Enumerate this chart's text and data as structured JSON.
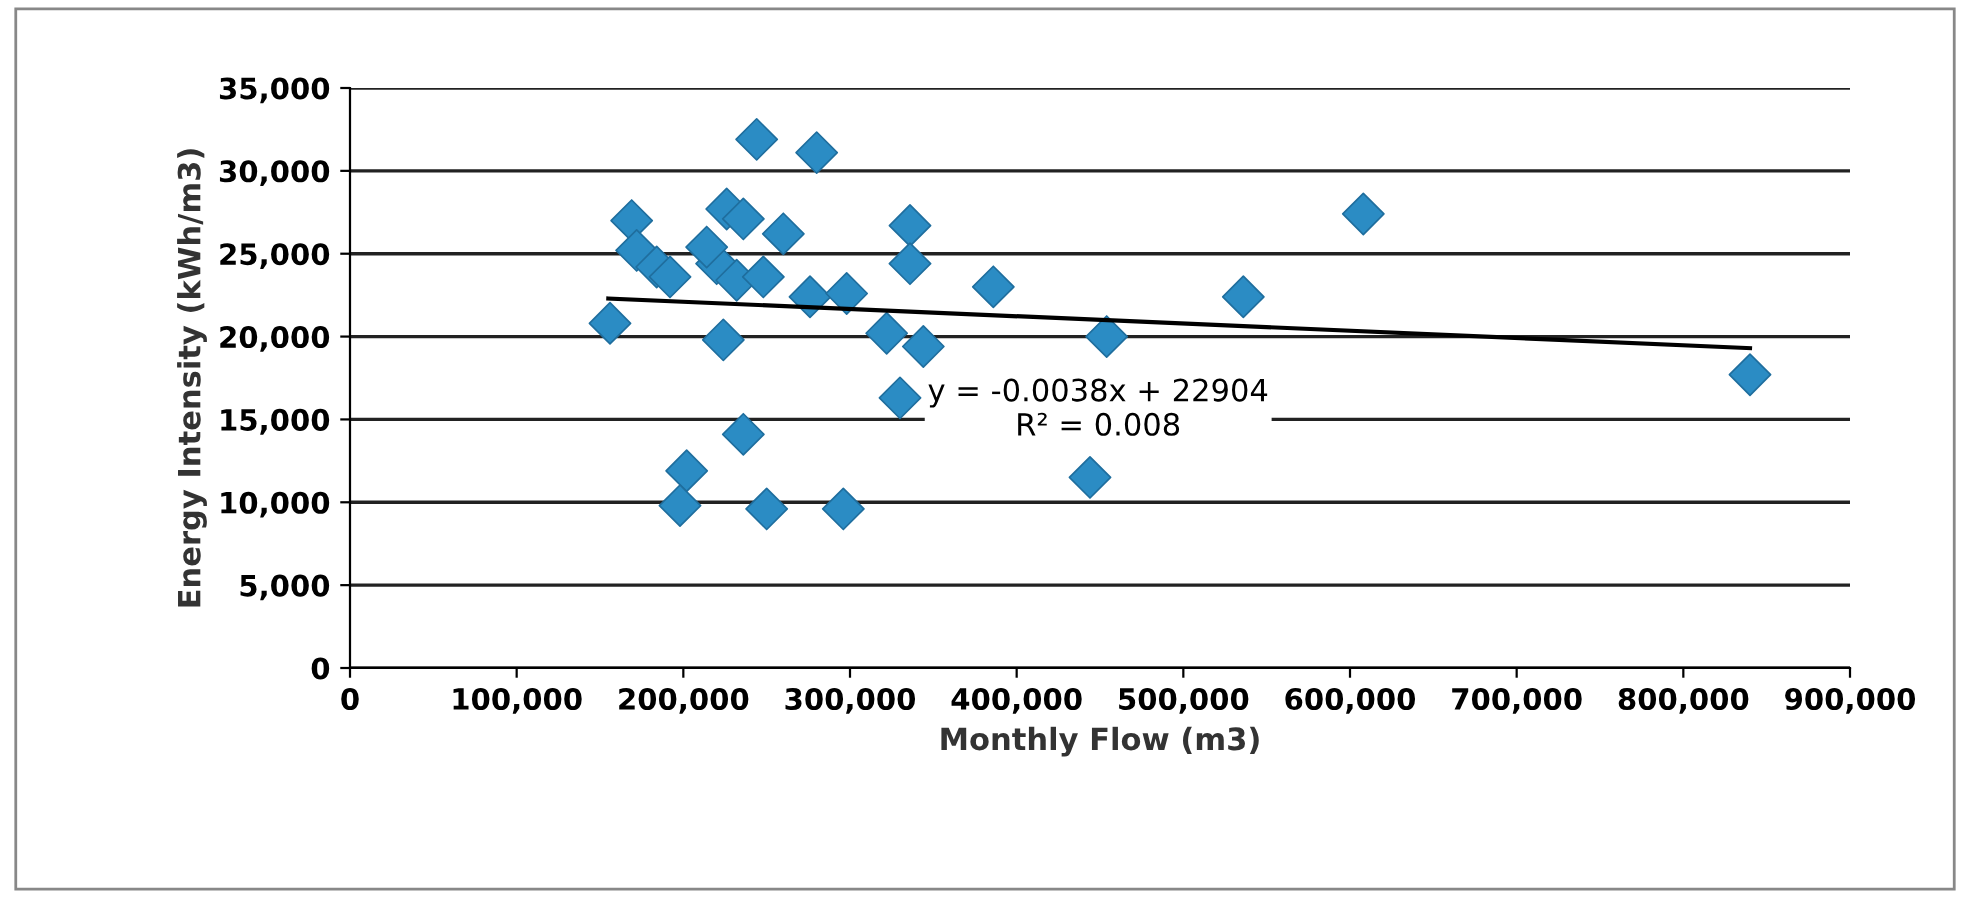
{
  "chart_data": {
    "type": "scatter",
    "xlabel": "Monthly Flow (m3)",
    "ylabel": "Energy Intensity (kWh/m3)",
    "xlim": [
      0,
      900000
    ],
    "xticks": [
      {
        "value": 0,
        "label": "0"
      },
      {
        "value": 100000,
        "label": "100,000"
      },
      {
        "value": 200000,
        "label": "200,000"
      },
      {
        "value": 300000,
        "label": "300,000"
      },
      {
        "value": 400000,
        "label": "400,000"
      },
      {
        "value": 500000,
        "label": "500,000"
      },
      {
        "value": 600000,
        "label": "600,000"
      },
      {
        "value": 700000,
        "label": "700,000"
      },
      {
        "value": 800000,
        "label": "800,000"
      },
      {
        "value": 900000,
        "label": "900,000"
      }
    ],
    "ylim": [
      0,
      35000
    ],
    "yticks": [
      {
        "value": 0,
        "label": "0"
      },
      {
        "value": 5000,
        "label": "5,000"
      },
      {
        "value": 10000,
        "label": "10,000"
      },
      {
        "value": 15000,
        "label": "15,000"
      },
      {
        "value": 20000,
        "label": "20,000"
      },
      {
        "value": 25000,
        "label": "25,000"
      },
      {
        "value": 30000,
        "label": "30,000"
      },
      {
        "value": 35000,
        "label": "35,000"
      }
    ],
    "grid": "y",
    "legend": false,
    "marker": "diamond",
    "series": [
      {
        "color": "#2b8cc4",
        "x": [
          156000,
          169000,
          172000,
          184000,
          192000,
          224000,
          226000,
          236000,
          244000,
          220000,
          214000,
          232000,
          248000,
          260000,
          280000,
          276000,
          298000,
          322000,
          336000,
          336000,
          344000,
          330000,
          236000,
          202000,
          198000,
          250000,
          296000,
          386000,
          454000,
          444000,
          608000,
          840000,
          536000
        ],
        "values": [
          20800,
          27000,
          25200,
          24200,
          23600,
          19800,
          27700,
          27100,
          31900,
          24400,
          25400,
          23400,
          23600,
          26200,
          31100,
          22400,
          22600,
          20200,
          26700,
          24400,
          19400,
          16300,
          14100,
          11900,
          9800,
          9600,
          9600,
          23000,
          20000,
          11500,
          27400,
          17700,
          22400
        ]
      },
      {
        "type": "line",
        "color": "#000000",
        "x": [
          155000,
          840000
        ],
        "values": [
          22300,
          19300
        ],
        "marker": "none"
      }
    ],
    "annotations": [
      "y = -0.0038x + 22904\nR² = 0.008"
    ]
  }
}
